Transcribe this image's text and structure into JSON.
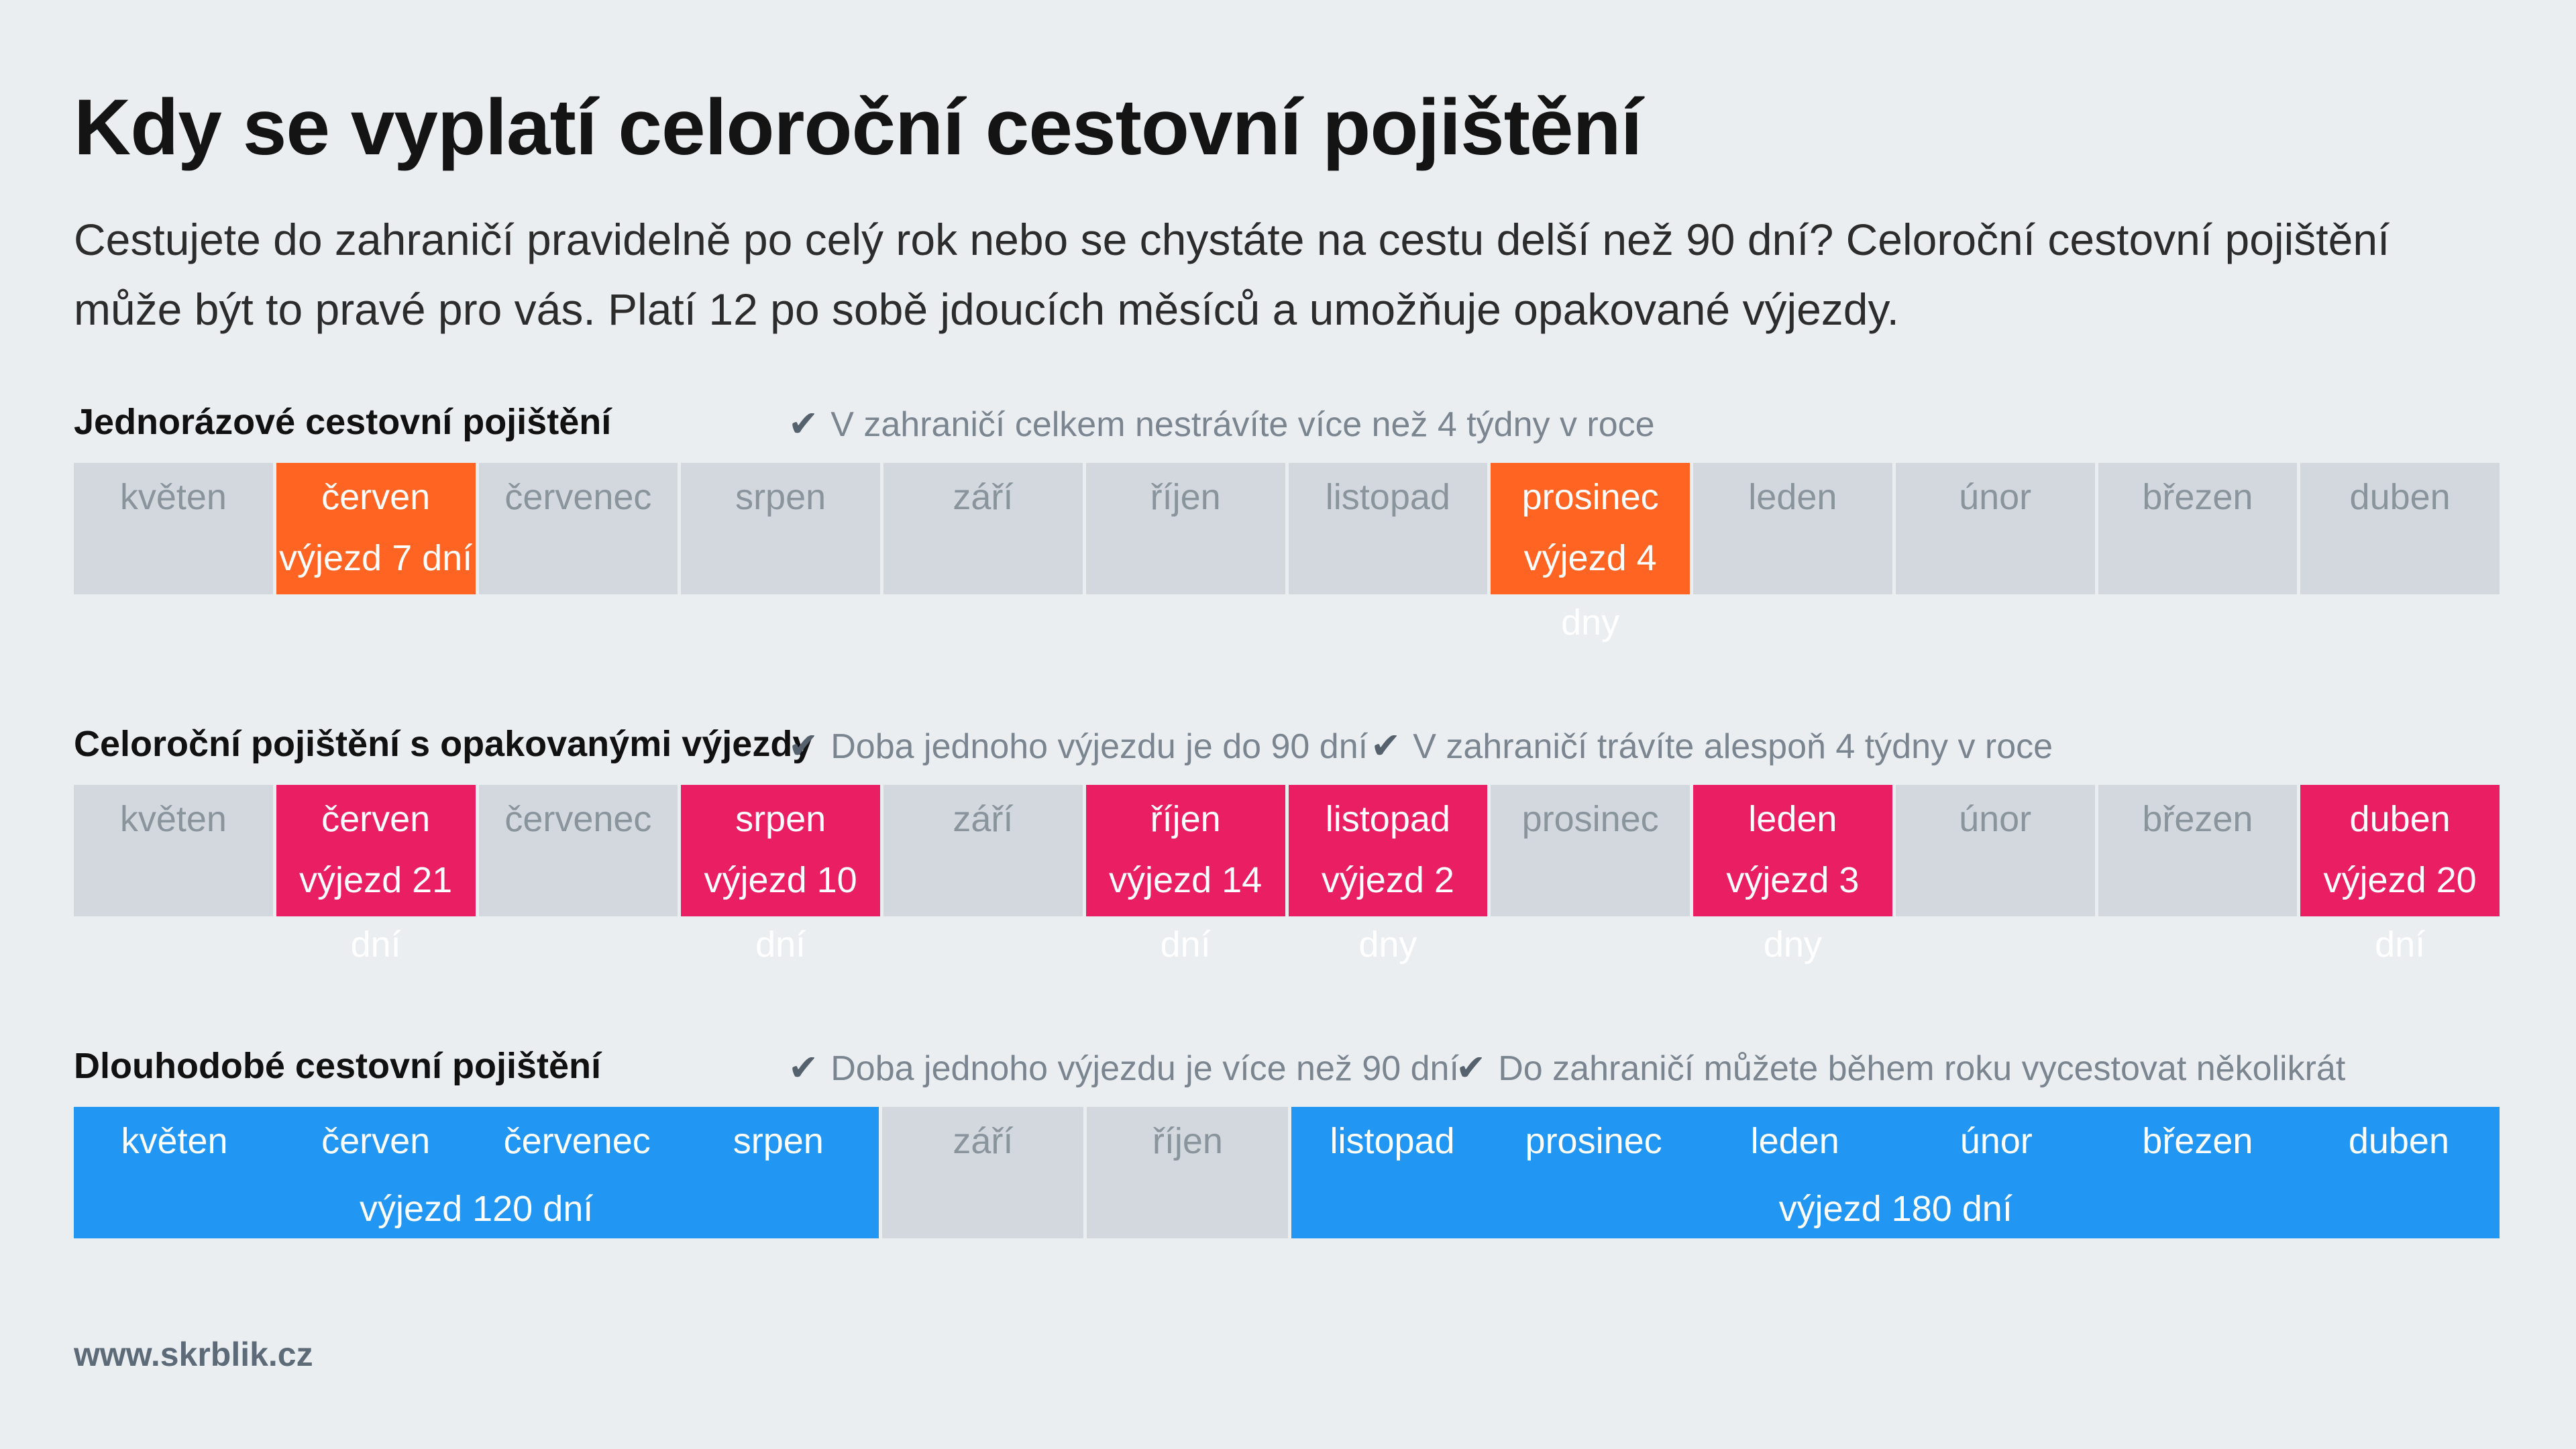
{
  "title": "Kdy se vyplatí celoroční cestovní pojištění",
  "intro": "Cestujete do zahraničí pravidelně po celý rok nebo se chystáte na cestu delší než 90 dní? Celoroční cestovní pojištění může být to pravé pro vás. Platí 12 po sobě jdoucích měsíců a umožňuje opakované výjezdy.",
  "check_icon": "✔",
  "sections": [
    {
      "title": "Jednorázové cestovní pojištění",
      "notes": [
        "V zahraničí celkem nestrávíte více než 4 týdny v roce"
      ],
      "accent": "#ff6422",
      "months": [
        {
          "label": "květen",
          "trip": ""
        },
        {
          "label": "červen",
          "trip": "výjezd 7 dní"
        },
        {
          "label": "červenec",
          "trip": ""
        },
        {
          "label": "srpen",
          "trip": ""
        },
        {
          "label": "září",
          "trip": ""
        },
        {
          "label": "říjen",
          "trip": ""
        },
        {
          "label": "listopad",
          "trip": ""
        },
        {
          "label": "prosinec",
          "trip": "výjezd 4 dny"
        },
        {
          "label": "leden",
          "trip": ""
        },
        {
          "label": "únor",
          "trip": ""
        },
        {
          "label": "březen",
          "trip": ""
        },
        {
          "label": "duben",
          "trip": ""
        }
      ]
    },
    {
      "title": "Celoroční pojištění s opakovanými výjezdy",
      "notes": [
        "Doba jednoho výjezdu je do 90 dní",
        "V zahraničí trávíte alespoň 4 týdny v roce"
      ],
      "accent": "#e91e63",
      "months": [
        {
          "label": "květen",
          "trip": ""
        },
        {
          "label": "červen",
          "trip": "výjezd 21 dní"
        },
        {
          "label": "červenec",
          "trip": ""
        },
        {
          "label": "srpen",
          "trip": "výjezd 10 dní"
        },
        {
          "label": "září",
          "trip": ""
        },
        {
          "label": "říjen",
          "trip": "výjezd 14 dní"
        },
        {
          "label": "listopad",
          "trip": "výjezd 2 dny"
        },
        {
          "label": "prosinec",
          "trip": ""
        },
        {
          "label": "leden",
          "trip": "výjezd 3 dny"
        },
        {
          "label": "únor",
          "trip": ""
        },
        {
          "label": "březen",
          "trip": ""
        },
        {
          "label": "duben",
          "trip": "výjezd 20 dní"
        }
      ]
    },
    {
      "title": "Dlouhodobé cestovní pojištění",
      "notes": [
        "Doba jednoho výjezdu je více než 90 dní",
        "Do zahraničí můžete během roku vycestovat několikrát"
      ],
      "accent": "#2196f3",
      "months": [
        {
          "label": "květen"
        },
        {
          "label": "červen"
        },
        {
          "label": "červenec"
        },
        {
          "label": "srpen"
        },
        {
          "label": "září"
        },
        {
          "label": "říjen"
        },
        {
          "label": "listopad"
        },
        {
          "label": "prosinec"
        },
        {
          "label": "leden"
        },
        {
          "label": "únor"
        },
        {
          "label": "březen"
        },
        {
          "label": "duben"
        }
      ],
      "trips": [
        {
          "label": "výjezd 120 dní"
        },
        {
          "label": "výjezd 180 dní"
        }
      ]
    }
  ],
  "footer": "www.skrblik.cz"
}
